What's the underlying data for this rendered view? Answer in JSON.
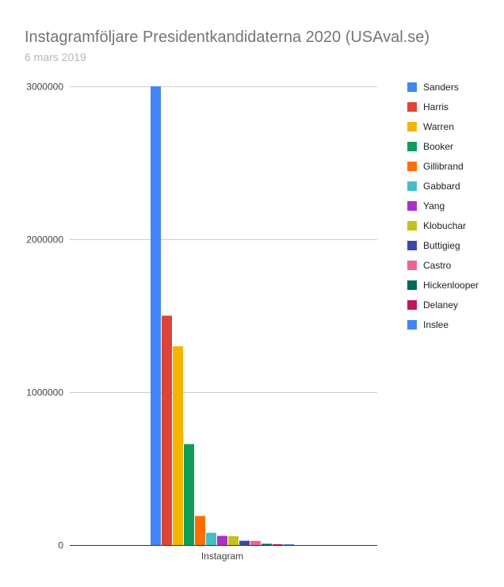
{
  "chart_data": {
    "type": "bar",
    "title": "Instagramföljare Presidentkandidaterna 2020 (USAval.se)",
    "subtitle": "6 mars 2019",
    "categories": [
      "Instagram"
    ],
    "ylim": [
      0,
      3000000
    ],
    "yticks": [
      "0",
      "1000000",
      "2000000",
      "3000000"
    ],
    "ytick_values": [
      0,
      1000000,
      2000000,
      3000000
    ],
    "grid": true,
    "legend_position": "right",
    "series": [
      {
        "name": "Sanders",
        "values": [
          3000000
        ],
        "color": "#4285f4"
      },
      {
        "name": "Harris",
        "values": [
          1500000
        ],
        "color": "#db4437"
      },
      {
        "name": "Warren",
        "values": [
          1300000
        ],
        "color": "#f4b400"
      },
      {
        "name": "Booker",
        "values": [
          660000
        ],
        "color": "#0f9d58"
      },
      {
        "name": "Gillibrand",
        "values": [
          190000
        ],
        "color": "#ff6d00"
      },
      {
        "name": "Gabbard",
        "values": [
          80000
        ],
        "color": "#46bdc6"
      },
      {
        "name": "Yang",
        "values": [
          60000
        ],
        "color": "#ab30c4"
      },
      {
        "name": "Klobuchar",
        "values": [
          58000
        ],
        "color": "#c2c21f"
      },
      {
        "name": "Buttigieg",
        "values": [
          28000
        ],
        "color": "#3949ab"
      },
      {
        "name": "Castro",
        "values": [
          27000
        ],
        "color": "#f06292"
      },
      {
        "name": "Hickenlooper",
        "values": [
          8000
        ],
        "color": "#00695c"
      },
      {
        "name": "Delaney",
        "values": [
          2000
        ],
        "color": "#c2185b"
      },
      {
        "name": "Inslee",
        "values": [
          1000
        ],
        "color": "#4285f4"
      }
    ]
  }
}
